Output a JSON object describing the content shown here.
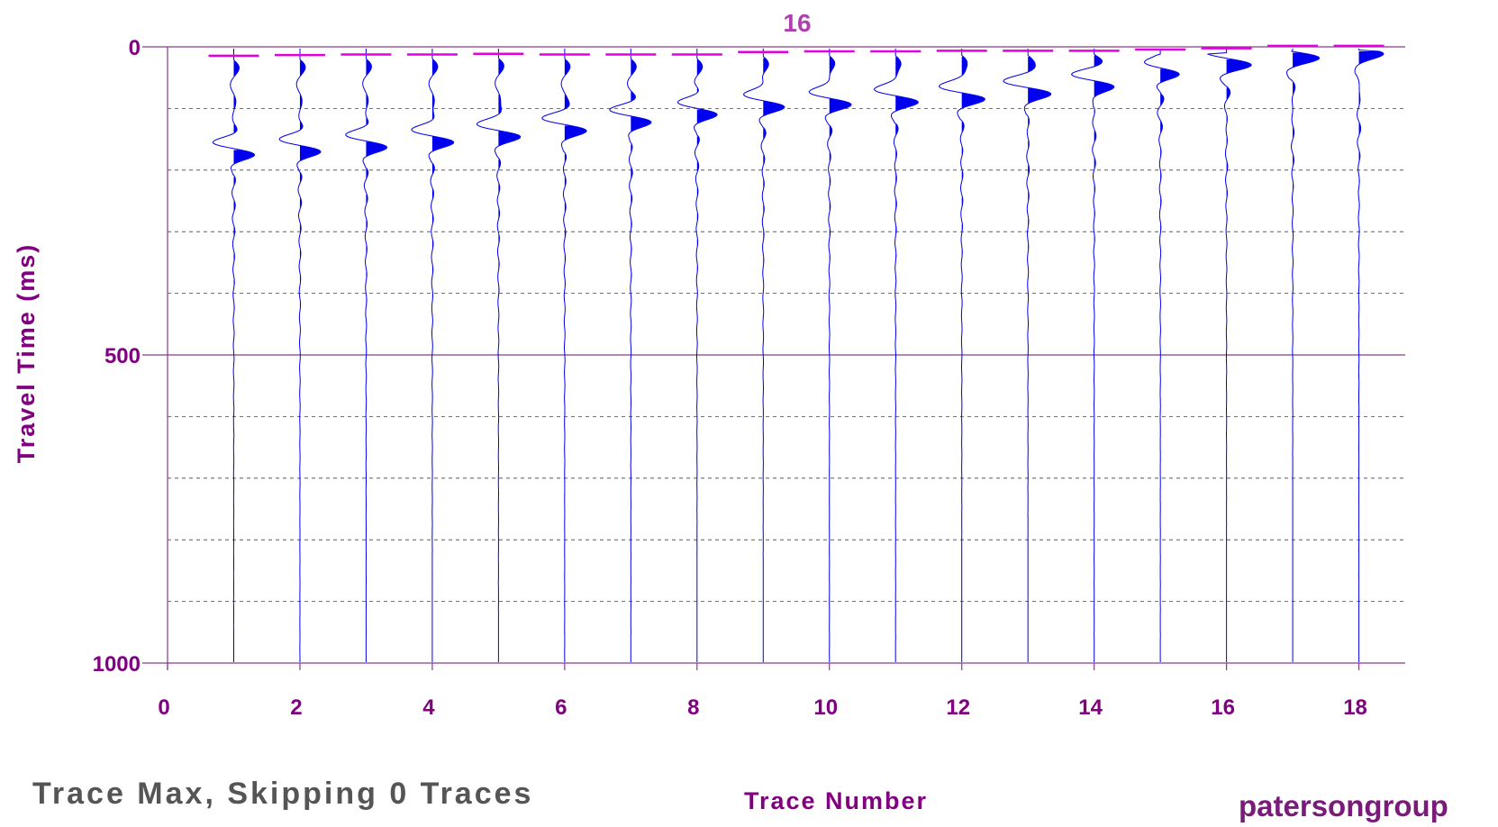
{
  "chart_data": {
    "type": "line",
    "title": "16",
    "xlabel": "Trace Number",
    "ylabel": "Travel Time (ms)",
    "xlim": [
      0,
      18.7
    ],
    "ylim": [
      1000,
      0
    ],
    "x_ticks": [
      0,
      2,
      4,
      6,
      8,
      10,
      12,
      14,
      16,
      18
    ],
    "y_ticks": [
      0,
      500,
      1000
    ],
    "y_minor_step": 100,
    "grid": true,
    "traces": [
      {
        "trace": 1,
        "first_break_ms": 10,
        "arrival_ms": 165
      },
      {
        "trace": 2,
        "first_break_ms": 9,
        "arrival_ms": 160
      },
      {
        "trace": 3,
        "first_break_ms": 8,
        "arrival_ms": 153
      },
      {
        "trace": 4,
        "first_break_ms": 8,
        "arrival_ms": 145
      },
      {
        "trace": 5,
        "first_break_ms": 7,
        "arrival_ms": 136
      },
      {
        "trace": 6,
        "first_break_ms": 8,
        "arrival_ms": 126
      },
      {
        "trace": 7,
        "first_break_ms": 8,
        "arrival_ms": 112
      },
      {
        "trace": 8,
        "first_break_ms": 8,
        "arrival_ms": 100
      },
      {
        "trace": 9,
        "first_break_ms": 4,
        "arrival_ms": 88
      },
      {
        "trace": 10,
        "first_break_ms": 3,
        "arrival_ms": 84
      },
      {
        "trace": 11,
        "first_break_ms": 3,
        "arrival_ms": 80
      },
      {
        "trace": 12,
        "first_break_ms": 2,
        "arrival_ms": 75
      },
      {
        "trace": 13,
        "first_break_ms": 2,
        "arrival_ms": 66
      },
      {
        "trace": 14,
        "first_break_ms": 2,
        "arrival_ms": 54
      },
      {
        "trace": 15,
        "first_break_ms": 0,
        "arrival_ms": 35
      },
      {
        "trace": 16,
        "first_break_ms": -2,
        "arrival_ms": 20
      },
      {
        "trace": 17,
        "first_break_ms": -6,
        "arrival_ms": 8
      },
      {
        "trace": 18,
        "first_break_ms": -6,
        "arrival_ms": 0
      }
    ],
    "colors": {
      "trace": "#0000ee",
      "pick_line": "#e000e0",
      "axis": "#8a3a8a",
      "label": "#800080",
      "title": "#b040b0"
    }
  },
  "footer": {
    "status": "Trace Max, Skipping 0 Traces",
    "brand": "patersongroup"
  }
}
